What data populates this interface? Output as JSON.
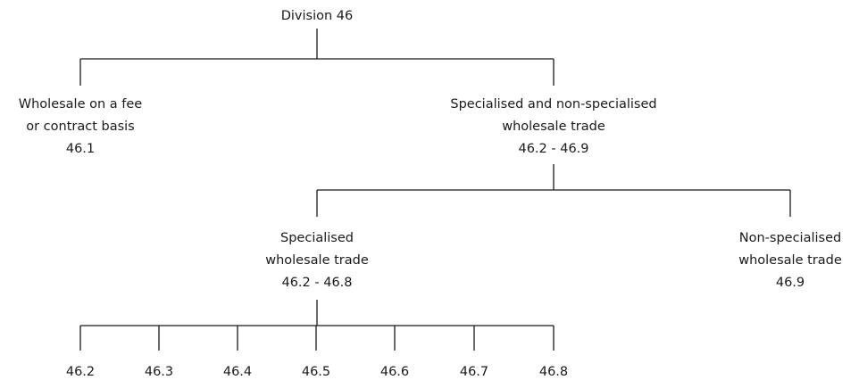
{
  "root": {
    "label": "Division 46"
  },
  "level1": {
    "left": {
      "line1": "Wholesale on a fee",
      "line2": "or contract basis",
      "code": "46.1"
    },
    "right": {
      "line1": "Specialised and non-specialised",
      "line2": "wholesale trade",
      "code": "46.2 - 46.9"
    }
  },
  "level2": {
    "left": {
      "line1": "Specialised",
      "line2": "wholesale trade",
      "code": "46.2 - 46.8"
    },
    "right": {
      "line1": "Non-specialised",
      "line2": "wholesale trade",
      "code": "46.9"
    }
  },
  "leaves": [
    "46.2",
    "46.3",
    "46.4",
    "46.5",
    "46.6",
    "46.7",
    "46.8"
  ]
}
